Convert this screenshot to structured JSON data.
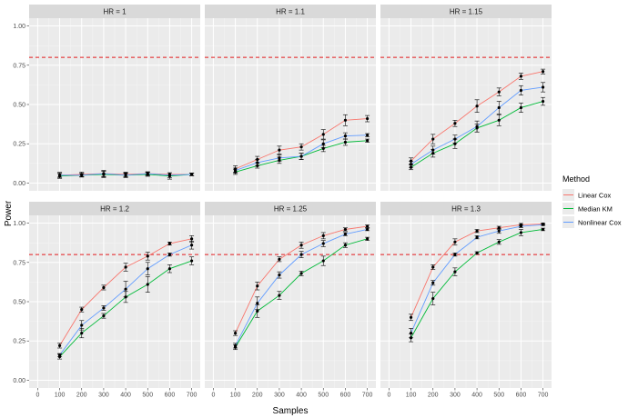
{
  "chart_data": {
    "type": "line",
    "facet_by": "HR",
    "panels": [
      {
        "title": "HR = 1",
        "series": [
          {
            "name": "Linear Cox",
            "values": [
              0.05,
              0.055,
              0.06,
              0.055,
              0.06,
              0.055,
              0.055
            ],
            "errors": [
              0.018,
              0.015,
              0.02,
              0.015,
              0.012,
              0.01,
              0.008
            ]
          },
          {
            "name": "Median KM",
            "values": [
              0.045,
              0.05,
              0.055,
              0.05,
              0.055,
              0.045,
              0.055
            ],
            "errors": [
              0.015,
              0.012,
              0.02,
              0.015,
              0.012,
              0.02,
              0.008
            ]
          },
          {
            "name": "Nonlinear Cox",
            "values": [
              0.05,
              0.05,
              0.06,
              0.05,
              0.06,
              0.05,
              0.055
            ],
            "errors": [
              0.012,
              0.01,
              0.018,
              0.012,
              0.01,
              0.015,
              0.008
            ]
          }
        ]
      },
      {
        "title": "HR = 1.1",
        "series": [
          {
            "name": "Linear Cox",
            "values": [
              0.09,
              0.15,
              0.21,
              0.23,
              0.31,
              0.4,
              0.41
            ],
            "errors": [
              0.02,
              0.02,
              0.025,
              0.02,
              0.03,
              0.035,
              0.02
            ]
          },
          {
            "name": "Median KM",
            "values": [
              0.07,
              0.11,
              0.145,
              0.17,
              0.22,
              0.26,
              0.27
            ],
            "errors": [
              0.015,
              0.015,
              0.02,
              0.02,
              0.02,
              0.02,
              0.01
            ]
          },
          {
            "name": "Nonlinear Cox",
            "values": [
              0.08,
              0.13,
              0.16,
              0.17,
              0.25,
              0.3,
              0.305
            ],
            "errors": [
              0.015,
              0.02,
              0.02,
              0.02,
              0.025,
              0.02,
              0.01
            ]
          }
        ]
      },
      {
        "title": "HR = 1.15",
        "series": [
          {
            "name": "Linear Cox",
            "values": [
              0.14,
              0.28,
              0.38,
              0.49,
              0.58,
              0.68,
              0.71
            ],
            "errors": [
              0.02,
              0.03,
              0.02,
              0.04,
              0.025,
              0.02,
              0.015
            ]
          },
          {
            "name": "Median KM",
            "values": [
              0.1,
              0.19,
              0.25,
              0.35,
              0.4,
              0.48,
              0.52
            ],
            "errors": [
              0.015,
              0.025,
              0.03,
              0.025,
              0.035,
              0.03,
              0.025
            ]
          },
          {
            "name": "Nonlinear Cox",
            "values": [
              0.12,
              0.21,
              0.28,
              0.36,
              0.48,
              0.59,
              0.61
            ],
            "errors": [
              0.02,
              0.025,
              0.025,
              0.035,
              0.04,
              0.03,
              0.03
            ]
          }
        ]
      },
      {
        "title": "HR = 1.2",
        "series": [
          {
            "name": "Linear Cox",
            "values": [
              0.22,
              0.45,
              0.59,
              0.72,
              0.79,
              0.87,
              0.9
            ],
            "errors": [
              0.015,
              0.015,
              0.015,
              0.025,
              0.025,
              0.01,
              0.02
            ]
          },
          {
            "name": "Median KM",
            "values": [
              0.15,
              0.3,
              0.41,
              0.53,
              0.61,
              0.71,
              0.76
            ],
            "errors": [
              0.015,
              0.03,
              0.015,
              0.035,
              0.05,
              0.025,
              0.025
            ]
          },
          {
            "name": "Nonlinear Cox",
            "values": [
              0.16,
              0.35,
              0.46,
              0.58,
              0.71,
              0.8,
              0.86
            ],
            "errors": [
              0.01,
              0.03,
              0.015,
              0.05,
              0.04,
              0.01,
              0.025
            ]
          }
        ]
      },
      {
        "title": "HR = 1.25",
        "series": [
          {
            "name": "Linear Cox",
            "values": [
              0.3,
              0.6,
              0.77,
              0.86,
              0.92,
              0.96,
              0.98
            ],
            "errors": [
              0.015,
              0.025,
              0.015,
              0.02,
              0.02,
              0.01,
              0.008
            ]
          },
          {
            "name": "Median KM",
            "values": [
              0.21,
              0.44,
              0.54,
              0.68,
              0.76,
              0.86,
              0.9
            ],
            "errors": [
              0.015,
              0.04,
              0.025,
              0.015,
              0.03,
              0.015,
              0.01
            ]
          },
          {
            "name": "Nonlinear Cox",
            "values": [
              0.22,
              0.49,
              0.67,
              0.8,
              0.87,
              0.93,
              0.96
            ],
            "errors": [
              0.015,
              0.04,
              0.02,
              0.02,
              0.02,
              0.01,
              0.008
            ]
          }
        ]
      },
      {
        "title": "HR = 1.3",
        "series": [
          {
            "name": "Linear Cox",
            "values": [
              0.4,
              0.72,
              0.88,
              0.95,
              0.97,
              0.99,
              0.995
            ],
            "errors": [
              0.02,
              0.015,
              0.02,
              0.01,
              0.01,
              0.008,
              0.005
            ]
          },
          {
            "name": "Median KM",
            "values": [
              0.27,
              0.52,
              0.69,
              0.81,
              0.88,
              0.94,
              0.96
            ],
            "errors": [
              0.025,
              0.04,
              0.025,
              0.008,
              0.015,
              0.02,
              0.008
            ]
          },
          {
            "name": "Nonlinear Cox",
            "values": [
              0.3,
              0.62,
              0.8,
              0.91,
              0.95,
              0.98,
              0.99
            ],
            "errors": [
              0.03,
              0.015,
              0.01,
              0.01,
              0.015,
              0.008,
              0.005
            ]
          }
        ]
      }
    ],
    "x": [
      100,
      200,
      300,
      400,
      500,
      600,
      700
    ],
    "xticks": [
      "0",
      "100",
      "200",
      "300",
      "400",
      "500",
      "600",
      "700"
    ],
    "yticks": [
      "0.00",
      "0.25",
      "0.50",
      "0.75",
      "1.00"
    ],
    "xlim": [
      0,
      700
    ],
    "ylim": [
      0,
      1
    ],
    "xlabel": "Samples",
    "ylabel": "Power",
    "reference_line": {
      "y": 0.8,
      "style": "dashed",
      "color": "#e41a1c"
    },
    "legend": {
      "title": "Method",
      "placement": "right",
      "items": [
        {
          "name": "Linear Cox",
          "color": "#f8766d"
        },
        {
          "name": "Median KM",
          "color": "#00ba38"
        },
        {
          "name": "Nonlinear Cox",
          "color": "#619cff"
        }
      ]
    },
    "grid": true,
    "panel_background": "#ebebeb",
    "strip_background": "#d9d9d9"
  }
}
